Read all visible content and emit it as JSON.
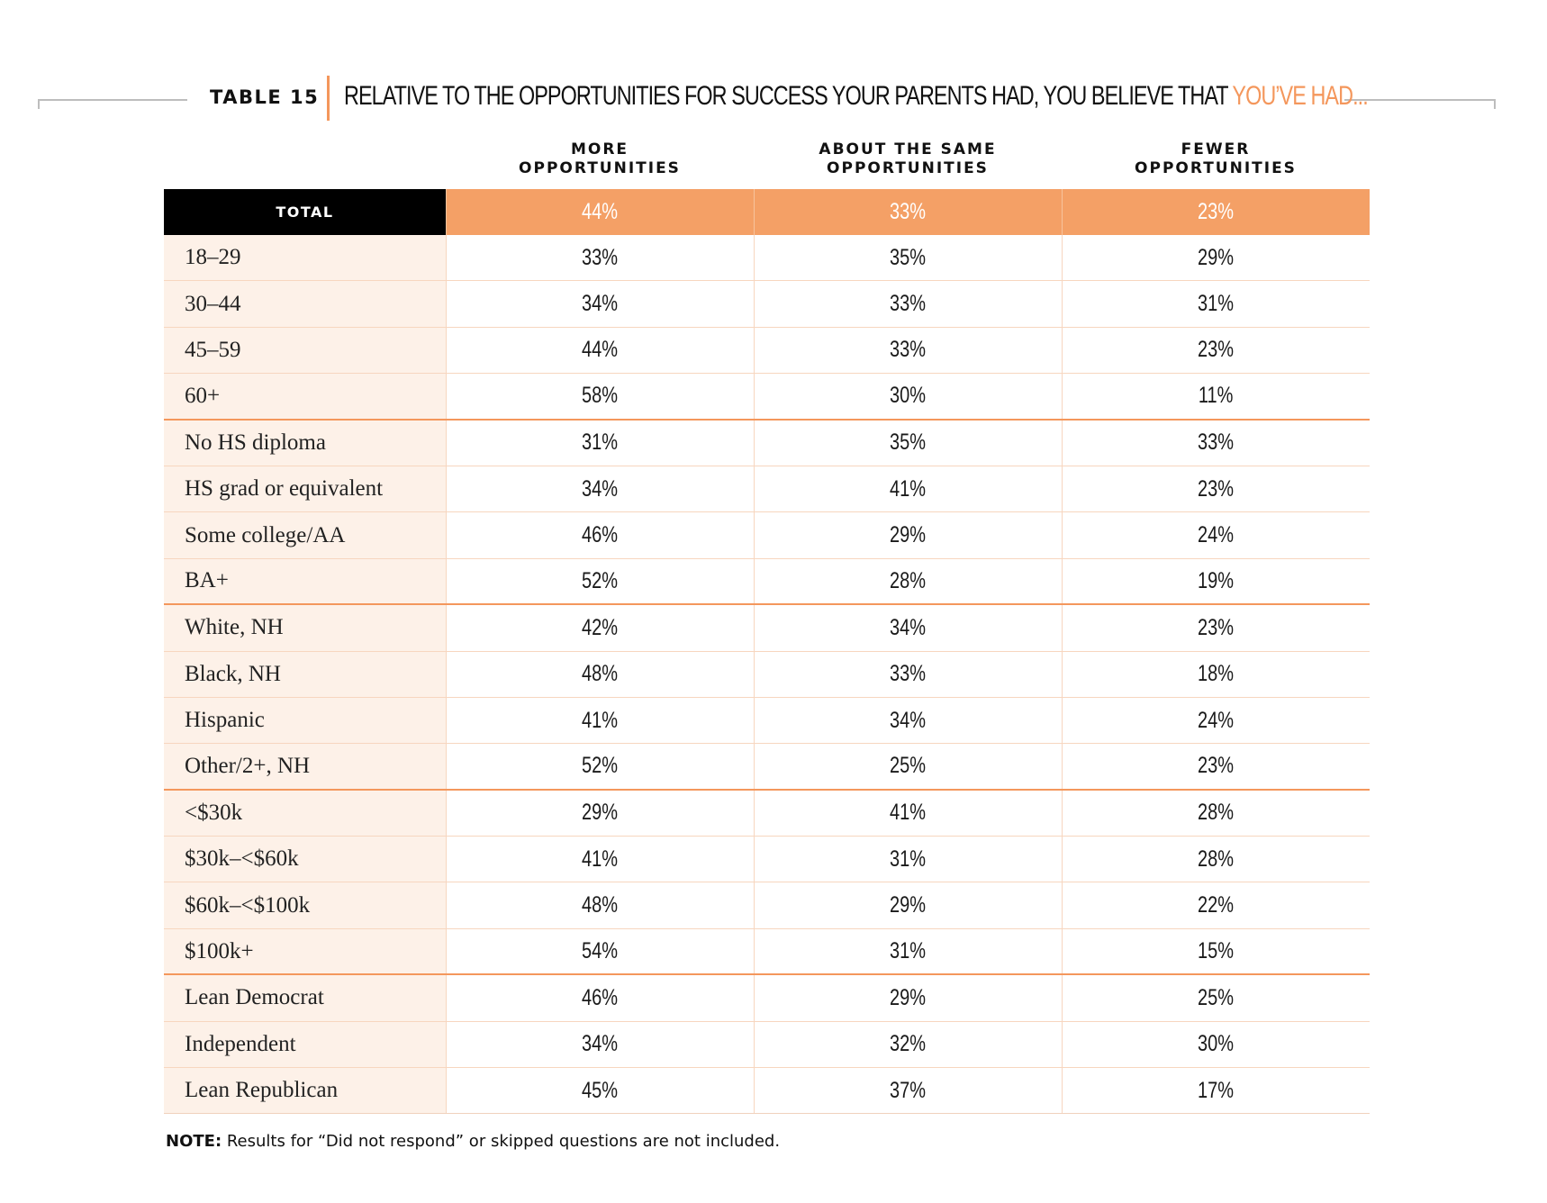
{
  "header": {
    "table_label": "TABLE 15",
    "title_main": "RELATIVE TO THE OPPORTUNITIES FOR SUCCESS YOUR PARENTS HAD, YOU BELIEVE THAT ",
    "title_accent": "YOU’VE HAD...",
    "accent_color": "#f4975c"
  },
  "columns": [
    {
      "line1": "MORE",
      "line2": "OPPORTUNITIES"
    },
    {
      "line1": "ABOUT THE SAME",
      "line2": "OPPORTUNITIES"
    },
    {
      "line1": "FEWER",
      "line2": "OPPORTUNITIES"
    }
  ],
  "total": {
    "label": "TOTAL",
    "values": [
      "44%",
      "33%",
      "23%"
    ]
  },
  "rows": [
    {
      "label": "18–29",
      "values": [
        "33%",
        "35%",
        "29%"
      ]
    },
    {
      "label": "30–44",
      "values": [
        "34%",
        "33%",
        "31%"
      ]
    },
    {
      "label": "45–59",
      "values": [
        "44%",
        "33%",
        "23%"
      ]
    },
    {
      "label": "60+",
      "values": [
        "58%",
        "30%",
        "11%"
      ]
    },
    {
      "label": "No HS diploma",
      "values": [
        "31%",
        "35%",
        "33%"
      ]
    },
    {
      "label": "HS grad or equivalent",
      "values": [
        "34%",
        "41%",
        "23%"
      ]
    },
    {
      "label": "Some college/AA",
      "values": [
        "46%",
        "29%",
        "24%"
      ]
    },
    {
      "label": "BA+",
      "values": [
        "52%",
        "28%",
        "19%"
      ]
    },
    {
      "label": "White, NH",
      "values": [
        "42%",
        "34%",
        "23%"
      ]
    },
    {
      "label": "Black, NH",
      "values": [
        "48%",
        "33%",
        "18%"
      ]
    },
    {
      "label": "Hispanic",
      "values": [
        "41%",
        "34%",
        "24%"
      ]
    },
    {
      "label": "Other/2+, NH",
      "values": [
        "52%",
        "25%",
        "23%"
      ]
    },
    {
      "label": "<$30k",
      "values": [
        "29%",
        "41%",
        "28%"
      ]
    },
    {
      "label": "$30k–<$60k",
      "values": [
        "41%",
        "31%",
        "28%"
      ]
    },
    {
      "label": "$60k–<$100k",
      "values": [
        "48%",
        "29%",
        "22%"
      ]
    },
    {
      "label": "$100k+",
      "values": [
        "54%",
        "31%",
        "15%"
      ]
    },
    {
      "label": "Lean Democrat",
      "values": [
        "46%",
        "29%",
        "25%"
      ]
    },
    {
      "label": "Independent",
      "values": [
        "34%",
        "32%",
        "30%"
      ]
    },
    {
      "label": "Lean Republican",
      "values": [
        "45%",
        "37%",
        "17%"
      ]
    }
  ],
  "note": {
    "label": "NOTE:",
    "text": " Results for “Did not respond” or skipped questions are not included."
  }
}
